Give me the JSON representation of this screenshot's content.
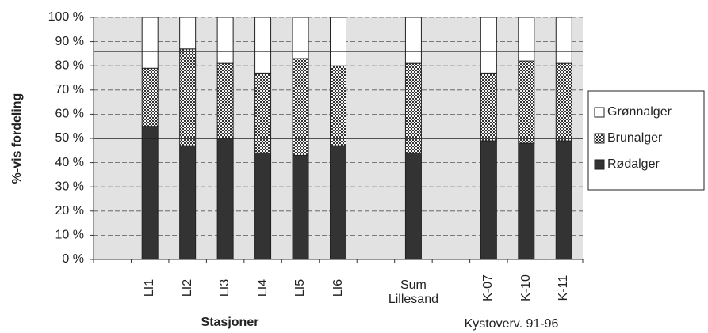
{
  "chart_data": {
    "type": "stacked_bar",
    "y_label": "%-vis fordeling",
    "x_label": "Stasjoner",
    "annotation": "Kystoverv. 91-96",
    "categories": [
      null,
      "LI1",
      "LI2",
      "LI3",
      "LI4",
      "LI5",
      "LI6",
      null,
      "Sum Lillesand",
      null,
      "K-07",
      "K-10",
      "K-11"
    ],
    "series": [
      {
        "name": "Rødalger",
        "color": "#333333",
        "values": [
          null,
          55,
          47,
          50,
          44,
          43,
          47,
          null,
          44,
          null,
          49,
          48,
          49
        ]
      },
      {
        "name": "Brunalger",
        "color": "#b0b0b0",
        "values": [
          null,
          24,
          40,
          31,
          33,
          40,
          33,
          null,
          37,
          null,
          28,
          34,
          32
        ]
      },
      {
        "name": "Grønnalger",
        "color": "#ffffff",
        "values": [
          null,
          21,
          13,
          19,
          23,
          17,
          20,
          null,
          19,
          null,
          23,
          18,
          19
        ]
      }
    ],
    "ylim": [
      0,
      100
    ],
    "yticks": [
      {
        "value": 0,
        "label": "0 %"
      },
      {
        "value": 10,
        "label": "10 %"
      },
      {
        "value": 20,
        "label": "20 %"
      },
      {
        "value": 30,
        "label": "30 %"
      },
      {
        "value": 40,
        "label": "40 %"
      },
      {
        "value": 50,
        "label": "50 %"
      },
      {
        "value": 60,
        "label": "60 %"
      },
      {
        "value": 70,
        "label": "70 %"
      },
      {
        "value": 80,
        "label": "80 %"
      },
      {
        "value": 90,
        "label": "90 %"
      },
      {
        "value": 100,
        "label": "100 %"
      }
    ],
    "reference_lines": [
      50,
      86
    ],
    "grid": true,
    "legend": "right"
  }
}
